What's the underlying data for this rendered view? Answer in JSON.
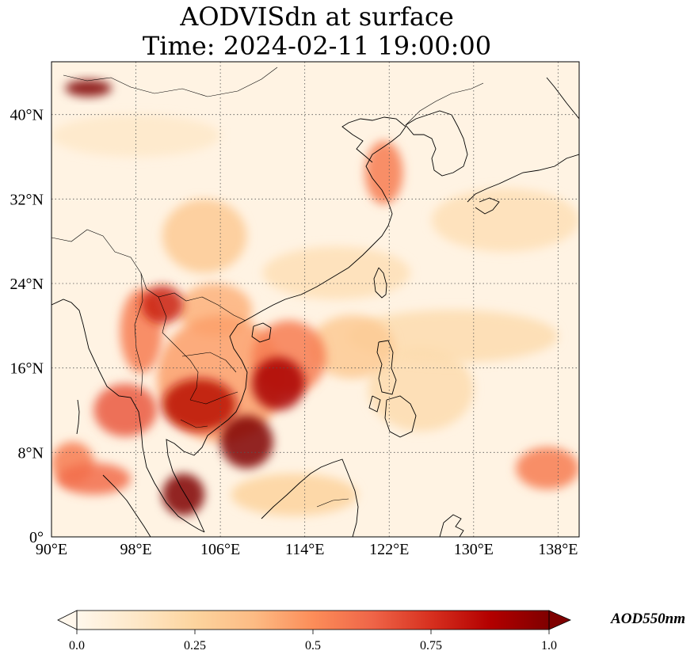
{
  "title": {
    "line1": "AODVISdn at surface",
    "line2": "Time: 2024-02-11 19:00:00"
  },
  "map": {
    "projection": "PlateCarree",
    "extent": {
      "lon_min": 90,
      "lon_max": 140,
      "lat_min": 0,
      "lat_max": 45
    },
    "gridlines": true,
    "gridline_style": "dotted",
    "coastlines": true,
    "borders": true,
    "lon_ticks": [
      {
        "value": 90,
        "label": "90°E"
      },
      {
        "value": 98,
        "label": "98°E"
      },
      {
        "value": 106,
        "label": "106°E"
      },
      {
        "value": 114,
        "label": "114°E"
      },
      {
        "value": 122,
        "label": "122°E"
      },
      {
        "value": 130,
        "label": "130°E"
      },
      {
        "value": 138,
        "label": "138°E"
      }
    ],
    "lat_ticks": [
      {
        "value": 0,
        "label": "0°"
      },
      {
        "value": 8,
        "label": "8°N"
      },
      {
        "value": 16,
        "label": "16°N"
      },
      {
        "value": 24,
        "label": "24°N"
      },
      {
        "value": 32,
        "label": "32°N"
      },
      {
        "value": 40,
        "label": "40°N"
      }
    ],
    "aod_hotspots": [
      {
        "lon": 93.5,
        "lat": 42.5,
        "rx": 2.2,
        "ry": 0.8,
        "value": 1.0
      },
      {
        "lon": 108.5,
        "lat": 9.0,
        "rx": 2.5,
        "ry": 2.5,
        "value": 1.0
      },
      {
        "lon": 102.5,
        "lat": 4.0,
        "rx": 2.0,
        "ry": 2.0,
        "value": 1.0
      },
      {
        "lon": 104.0,
        "lat": 12.5,
        "rx": 3.5,
        "ry": 2.5,
        "value": 0.85
      },
      {
        "lon": 111.5,
        "lat": 14.5,
        "rx": 2.5,
        "ry": 2.5,
        "value": 0.9
      },
      {
        "lon": 100.5,
        "lat": 22.0,
        "rx": 2.0,
        "ry": 1.8,
        "value": 0.8
      },
      {
        "lon": 97.0,
        "lat": 12.0,
        "rx": 3.0,
        "ry": 2.5,
        "value": 0.65
      },
      {
        "lon": 94.0,
        "lat": 5.5,
        "rx": 3.5,
        "ry": 1.5,
        "value": 0.6
      },
      {
        "lon": 112.5,
        "lat": 17.0,
        "rx": 3.5,
        "ry": 3.5,
        "value": 0.55
      },
      {
        "lon": 106.0,
        "lat": 15.0,
        "rx": 6.0,
        "ry": 6.0,
        "value": 0.45
      },
      {
        "lon": 121.5,
        "lat": 34.5,
        "rx": 1.8,
        "ry": 3.0,
        "value": 0.55
      },
      {
        "lon": 98.5,
        "lat": 19.5,
        "rx": 2.0,
        "ry": 4.0,
        "value": 0.55
      },
      {
        "lon": 92.0,
        "lat": 7.0,
        "rx": 2.0,
        "ry": 2.0,
        "value": 0.55
      },
      {
        "lon": 137.0,
        "lat": 6.5,
        "rx": 3.0,
        "ry": 2.0,
        "value": 0.55
      },
      {
        "lon": 105.5,
        "lat": 21.5,
        "rx": 3.5,
        "ry": 2.5,
        "value": 0.4
      },
      {
        "lon": 118.5,
        "lat": 18.0,
        "rx": 4.0,
        "ry": 3.0,
        "value": 0.3
      },
      {
        "lon": 125.0,
        "lat": 14.0,
        "rx": 5.0,
        "ry": 4.0,
        "value": 0.2
      },
      {
        "lon": 113.0,
        "lat": 4.0,
        "rx": 6.0,
        "ry": 2.0,
        "value": 0.25
      },
      {
        "lon": 104.5,
        "lat": 28.5,
        "rx": 4.0,
        "ry": 3.5,
        "value": 0.3
      },
      {
        "lon": 128.0,
        "lat": 19.0,
        "rx": 10.0,
        "ry": 2.5,
        "value": 0.2
      },
      {
        "lon": 133.0,
        "lat": 30.0,
        "rx": 7.0,
        "ry": 3.0,
        "value": 0.18
      },
      {
        "lon": 98.0,
        "lat": 38.0,
        "rx": 8.0,
        "ry": 2.0,
        "value": 0.12
      },
      {
        "lon": 117.0,
        "lat": 25.0,
        "rx": 7.0,
        "ry": 2.5,
        "value": 0.18
      }
    ]
  },
  "colorbar": {
    "cmap": "OrRd",
    "min": 0.0,
    "max": 1.0,
    "extend": "both",
    "ticks": [
      {
        "value": 0.0,
        "label": "0.0"
      },
      {
        "value": 0.25,
        "label": "0.25"
      },
      {
        "value": 0.5,
        "label": "0.5"
      },
      {
        "value": 0.75,
        "label": "0.75"
      },
      {
        "value": 1.0,
        "label": "1.0"
      }
    ],
    "label": "AOD550nm",
    "colors": [
      "#fff7ec",
      "#fee8c8",
      "#fdd49e",
      "#fdbb84",
      "#fc8d59",
      "#ef6548",
      "#d7301f",
      "#b30000",
      "#7f0000"
    ]
  }
}
